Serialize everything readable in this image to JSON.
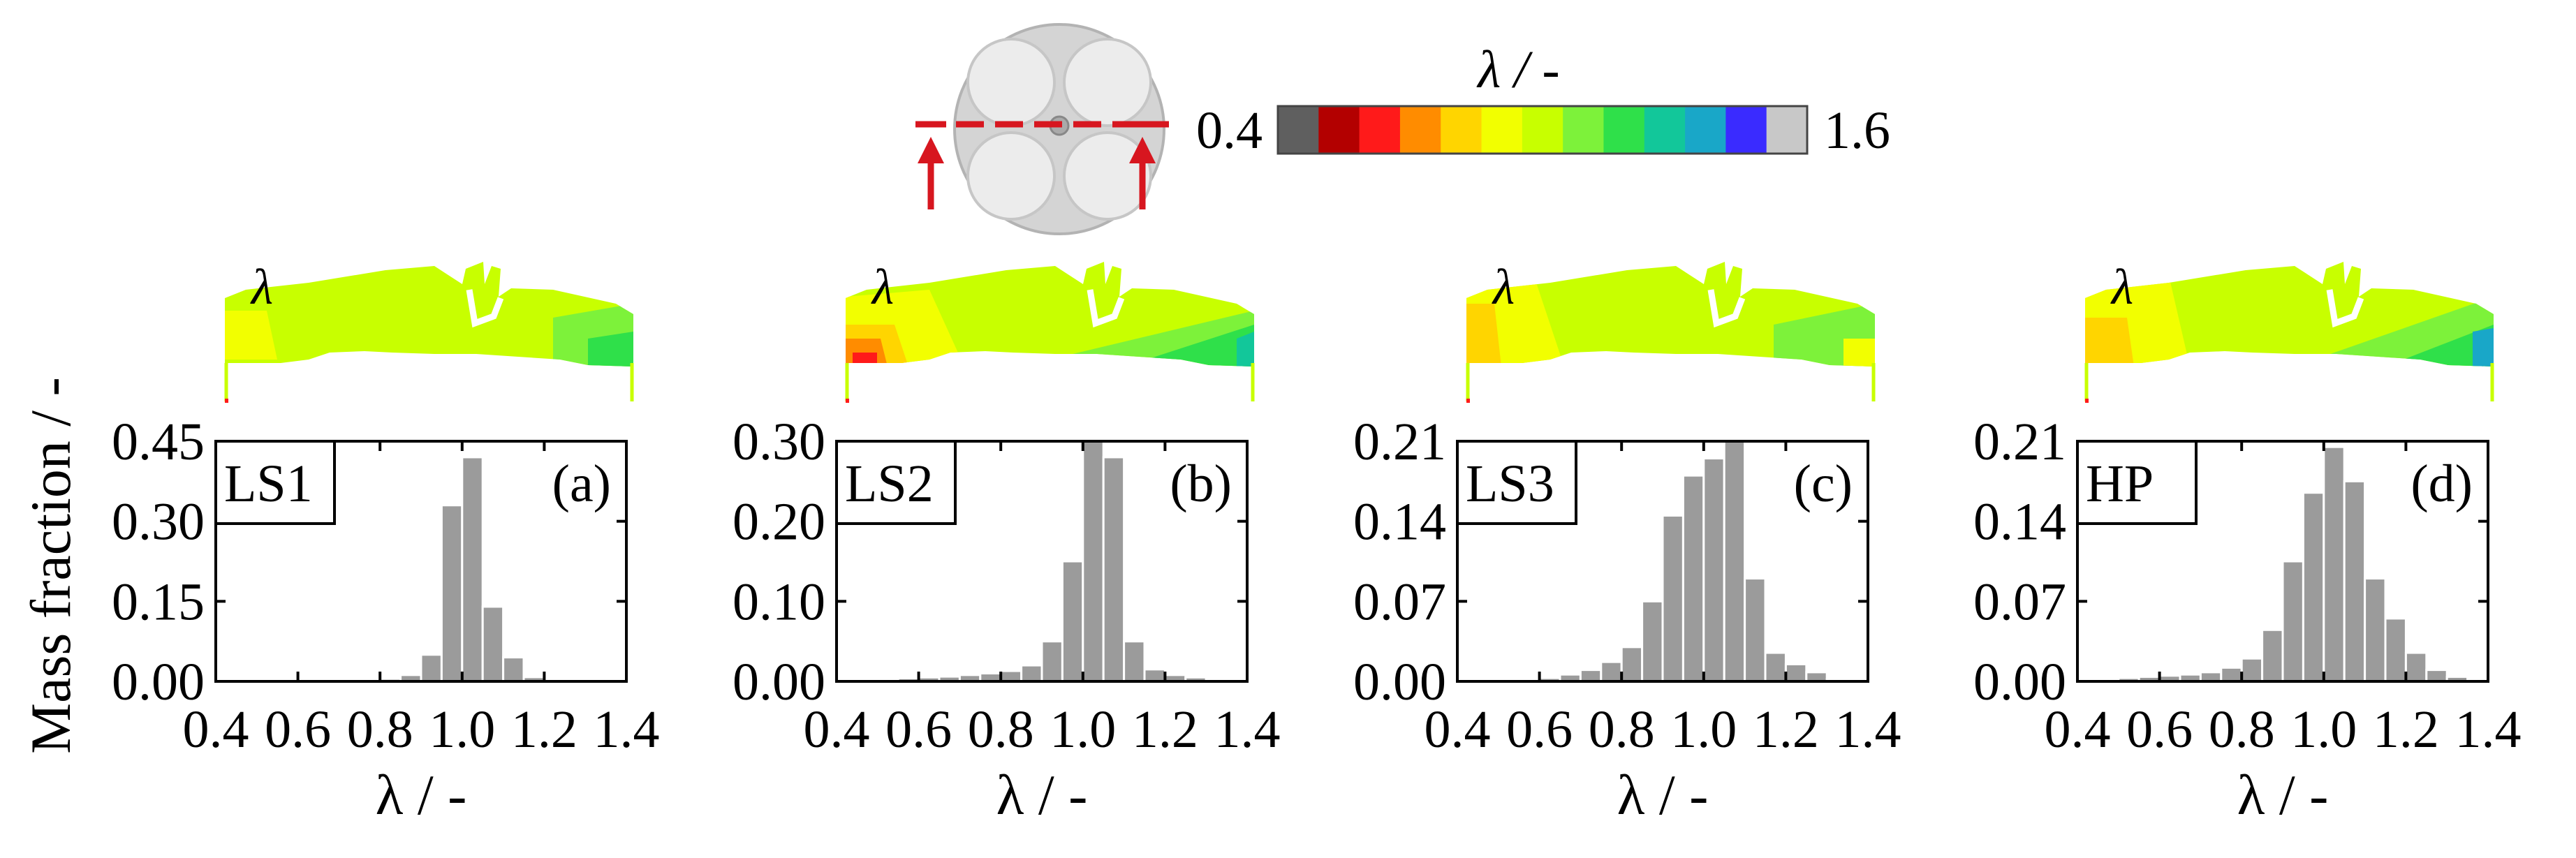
{
  "figure": {
    "ylabel": "Mass fraction / -",
    "xlabel": "λ / -",
    "contour_symbol": "λ"
  },
  "colorbar": {
    "title": "λ / -",
    "min_label": "0.4",
    "max_label": "1.6",
    "colors": [
      "#5f5f5f",
      "#b30000",
      "#ff1a1a",
      "#ff8c00",
      "#ffd500",
      "#f2ff00",
      "#c8ff00",
      "#7df23a",
      "#2fe04a",
      "#12c79a",
      "#19a7c8",
      "#3a2bff",
      "#c8c8c8"
    ]
  },
  "chart_data": [
    {
      "type": "bar",
      "case": "LS1",
      "panel": "(a)",
      "xlim": [
        0.4,
        1.4
      ],
      "ylim": [
        0.0,
        0.45
      ],
      "xticks": [
        "0.4",
        "0.6",
        "0.8",
        "1.0",
        "1.2",
        "1.4"
      ],
      "yticks": [
        "0.00",
        "0.15",
        "0.30",
        "0.45"
      ],
      "bin_centers": [
        0.825,
        0.875,
        0.925,
        0.975,
        1.025,
        1.075,
        1.125,
        1.175
      ],
      "values": [
        0.005,
        0.012,
        0.05,
        0.33,
        0.42,
        0.14,
        0.045,
        0.008
      ]
    },
    {
      "type": "bar",
      "case": "LS2",
      "panel": "(b)",
      "xlim": [
        0.4,
        1.4
      ],
      "ylim": [
        0.0,
        0.3
      ],
      "xticks": [
        "0.4",
        "0.6",
        "0.8",
        "1.0",
        "1.2",
        "1.4"
      ],
      "yticks": [
        "0.00",
        "0.10",
        "0.20",
        "0.30"
      ],
      "bin_centers": [
        0.475,
        0.525,
        0.575,
        0.625,
        0.675,
        0.725,
        0.775,
        0.825,
        0.875,
        0.925,
        0.975,
        1.025,
        1.075,
        1.125,
        1.175,
        1.225,
        1.275,
        1.325
      ],
      "values": [
        0.002,
        0.003,
        0.004,
        0.005,
        0.006,
        0.008,
        0.01,
        0.013,
        0.02,
        0.05,
        0.15,
        0.3,
        0.28,
        0.05,
        0.015,
        0.008,
        0.005,
        0.003
      ]
    },
    {
      "type": "bar",
      "case": "LS3",
      "panel": "(c)",
      "xlim": [
        0.4,
        1.4
      ],
      "ylim": [
        0.0,
        0.21
      ],
      "xticks": [
        "0.4",
        "0.6",
        "0.8",
        "1.0",
        "1.2",
        "1.4"
      ],
      "yticks": [
        "0.00",
        "0.07",
        "0.14",
        "0.21"
      ],
      "bin_centers": [
        0.575,
        0.625,
        0.675,
        0.725,
        0.775,
        0.825,
        0.875,
        0.925,
        0.975,
        1.025,
        1.075,
        1.125,
        1.175,
        1.225,
        1.275,
        1.325
      ],
      "values": [
        0.001,
        0.003,
        0.006,
        0.01,
        0.017,
        0.03,
        0.07,
        0.145,
        0.18,
        0.195,
        0.21,
        0.09,
        0.025,
        0.015,
        0.008,
        0.002
      ]
    },
    {
      "type": "bar",
      "case": "HP",
      "panel": "(d)",
      "xlim": [
        0.4,
        1.4
      ],
      "ylim": [
        0.0,
        0.21
      ],
      "xticks": [
        "0.4",
        "0.6",
        "0.8",
        "1.0",
        "1.2",
        "1.4"
      ],
      "yticks": [
        "0.00",
        "0.07",
        "0.14",
        "0.21"
      ],
      "bin_centers": [
        0.475,
        0.525,
        0.575,
        0.625,
        0.675,
        0.725,
        0.775,
        0.825,
        0.875,
        0.925,
        0.975,
        1.025,
        1.075,
        1.125,
        1.175,
        1.225,
        1.275,
        1.325
      ],
      "values": [
        0.002,
        0.003,
        0.004,
        0.005,
        0.006,
        0.008,
        0.012,
        0.02,
        0.045,
        0.105,
        0.165,
        0.205,
        0.175,
        0.09,
        0.055,
        0.025,
        0.01,
        0.004
      ]
    }
  ]
}
